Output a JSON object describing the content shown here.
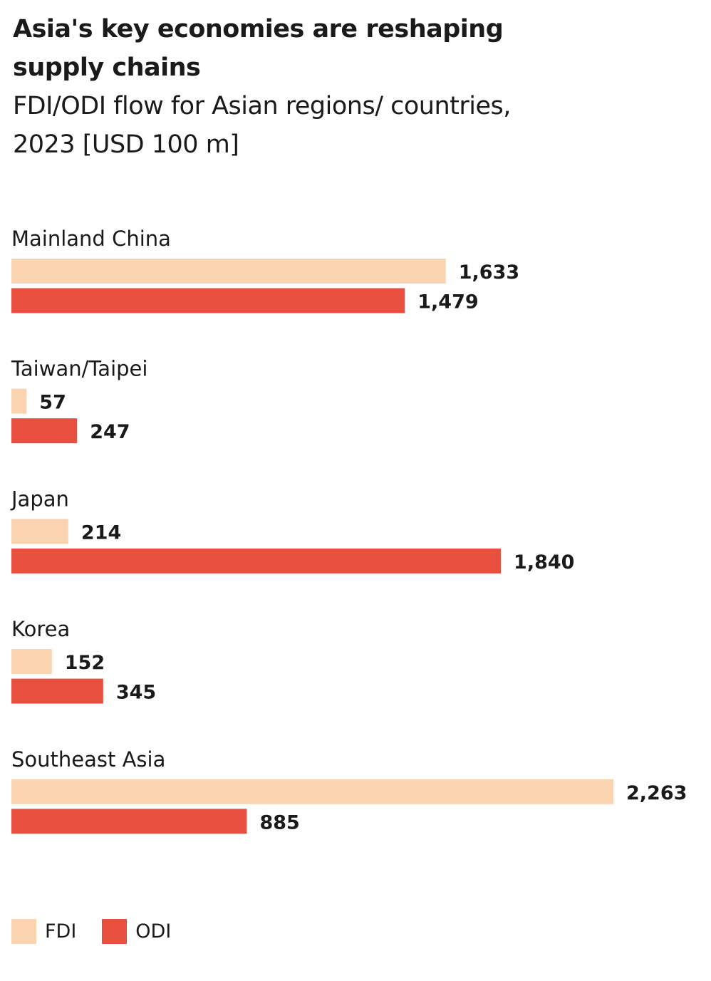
{
  "chart_data": {
    "type": "bar",
    "orientation": "horizontal",
    "title": "Asia's key economies are reshaping supply chains",
    "subtitle": "FDI/ODI flow for Asian regions/ countries, 2023 [USD 100 m]",
    "categories": [
      "Mainland China",
      "Taiwan/Taipei",
      "Japan",
      "Korea",
      "Southeast Asia"
    ],
    "series": [
      {
        "name": "FDI",
        "color": "#FAD3B0",
        "values": [
          1633,
          57,
          214,
          152,
          2263
        ],
        "labels": [
          "1,633",
          "57",
          "214",
          "152",
          "2,263"
        ]
      },
      {
        "name": "ODI",
        "color": "#E94F3F",
        "values": [
          1479,
          247,
          1840,
          345,
          885
        ],
        "labels": [
          "1,479",
          "247",
          "1,840",
          "345",
          "885"
        ]
      }
    ],
    "xlim": [
      0,
      2263
    ],
    "grid": false,
    "legend": "bottom-left"
  }
}
